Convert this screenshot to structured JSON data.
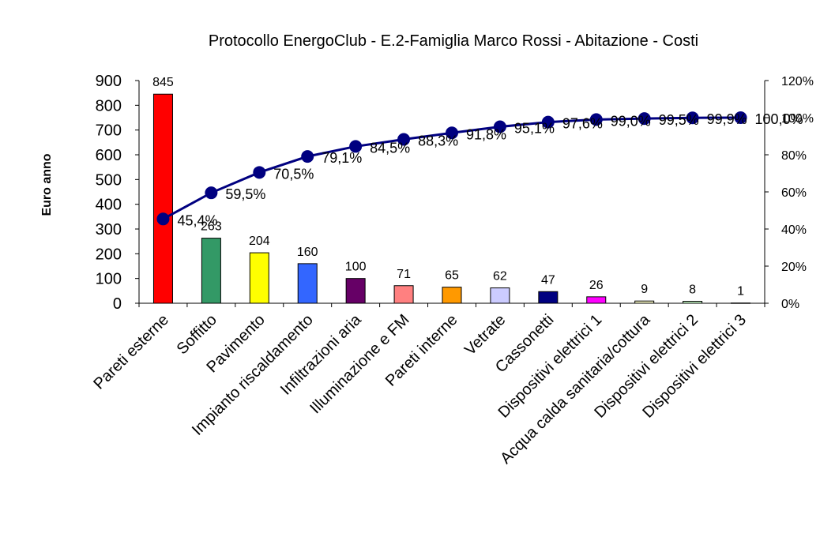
{
  "chart_data": {
    "type": "bar",
    "title": "Protocollo EnergoClub - E.2-Famiglia Marco Rossi - Abitazione - Costi",
    "ylabel": "Euro anno",
    "xlabel": "",
    "categories": [
      "Pareti esterne",
      "Soffitto",
      "Pavimento",
      "Impianto riscaldamento",
      "Infiltrazioni aria",
      "Illuminazione e FM",
      "Pareti interne",
      "Vetrate",
      "Cassonetti",
      "Dispositivi elettrici 1",
      "Acqua calda sanitaria/cottura",
      "Dispositivi elettrici 2",
      "Dispositivi elettrici 3"
    ],
    "values": [
      845,
      263,
      204,
      160,
      100,
      71,
      65,
      62,
      47,
      26,
      9,
      8,
      1
    ],
    "value_labels": [
      "845",
      "263",
      "204",
      "160",
      "100",
      "71",
      "65",
      "62",
      "47",
      "26",
      "9",
      "8",
      "1"
    ],
    "bar_colors": [
      "#ff0000",
      "#339966",
      "#ffff00",
      "#3366ff",
      "#660066",
      "#ff8080",
      "#ff9900",
      "#ccccff",
      "#000080",
      "#ff00ff",
      "#ffffcc",
      "#ccffcc",
      "#ffffff"
    ],
    "ylim": [
      0,
      900
    ],
    "y_ticks": [
      0,
      100,
      200,
      300,
      400,
      500,
      600,
      700,
      800,
      900
    ],
    "y_tick_labels": [
      "0",
      "100",
      "200",
      "300",
      "400",
      "500",
      "600",
      "700",
      "800",
      "900"
    ],
    "cumulative": {
      "values": [
        45.4,
        59.5,
        70.5,
        79.1,
        84.5,
        88.3,
        91.8,
        95.1,
        97.6,
        99.0,
        99.5,
        99.9,
        100.0
      ],
      "labels": [
        "45,4%",
        "59,5%",
        "70,5%",
        "79,1%",
        "84,5%",
        "88,3%",
        "91,8%",
        "95,1%",
        "97,6%",
        "99,0%",
        "99,5%",
        "99,9%",
        "100,0%"
      ],
      "color": "#000080"
    },
    "y2lim": [
      0,
      120
    ],
    "y2_ticks": [
      0,
      20,
      40,
      60,
      80,
      100,
      120
    ],
    "y2_tick_labels": [
      "0%",
      "20%",
      "40%",
      "60%",
      "80%",
      "100%",
      "120%"
    ],
    "grid": false,
    "legend": "none"
  }
}
